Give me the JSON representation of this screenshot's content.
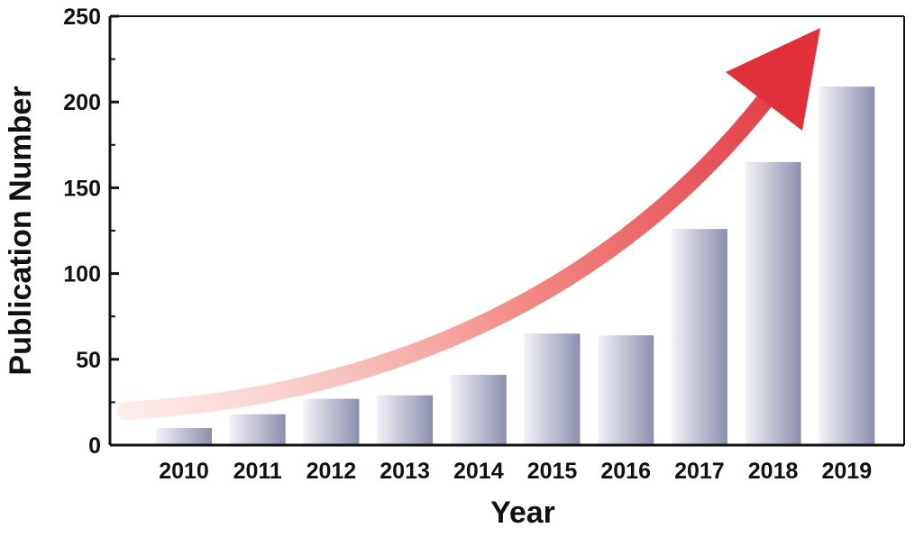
{
  "chart_data": {
    "type": "bar",
    "title": "",
    "xlabel": "Year",
    "ylabel": "Publication Number",
    "categories": [
      "2010",
      "2011",
      "2012",
      "2013",
      "2014",
      "2015",
      "2016",
      "2017",
      "2018",
      "2019"
    ],
    "series": [
      {
        "values": [
          10,
          18,
          27,
          29,
          41,
          65,
          64,
          126,
          165,
          209
        ]
      }
    ],
    "ylim": [
      0,
      250
    ],
    "yticks": [
      0,
      50,
      100,
      150,
      200,
      250
    ],
    "grid": false,
    "legend": "none",
    "annotations": [
      {
        "kind": "trend-arrow",
        "description_color_start": "#fbe0dc",
        "description_color_end": "#e0303a"
      }
    ],
    "colors": {
      "bar_light": "#f2f2f7",
      "bar_dark": "#8c90ad",
      "axis": "#111111",
      "arrow_start": "#fbe0dc",
      "arrow_end": "#e0303a"
    }
  }
}
